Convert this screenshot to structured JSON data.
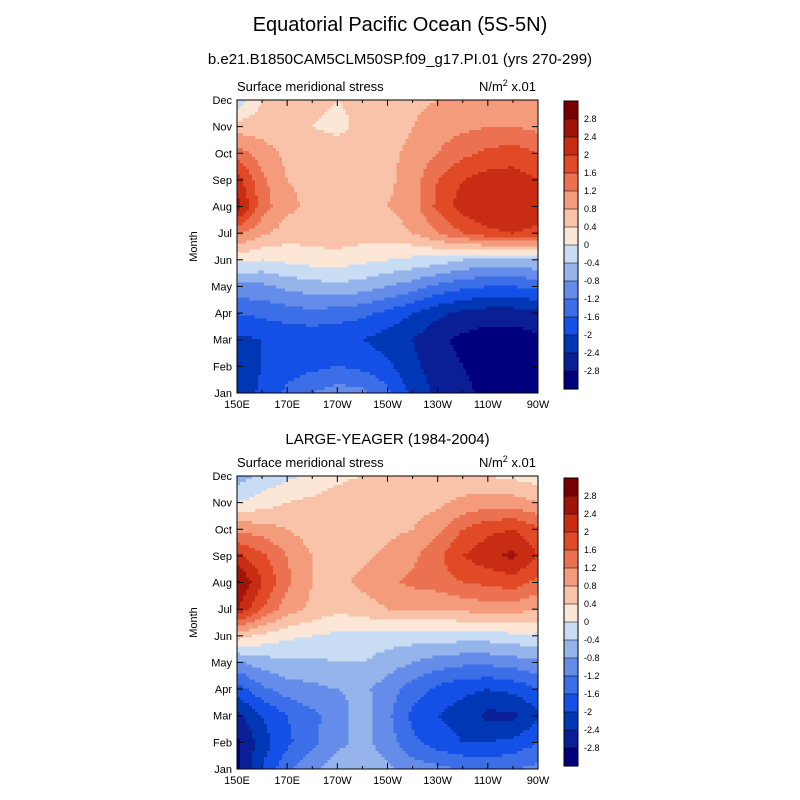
{
  "figure": {
    "title": "Equatorial Pacific Ocean (5S-5N)",
    "subtitle": "b.e21.B1850CAM5CLM50SP.f09_g17.PI.01 (yrs 270-299)"
  },
  "chart_data": [
    {
      "type": "heatmap",
      "title": "",
      "left_label": "Surface meridional stress",
      "right_label_base": "N/m",
      "right_label_sup": "2",
      "right_label_suffix": " x.01",
      "ylabel": "Month",
      "xlabel": "",
      "x_ticks": [
        "150E",
        "170E",
        "170W",
        "150W",
        "130W",
        "110W",
        "90W"
      ],
      "y_ticks": [
        "Jan",
        "Feb",
        "Mar",
        "Apr",
        "May",
        "Jun",
        "Jul",
        "Aug",
        "Sep",
        "Oct",
        "Nov",
        "Dec"
      ],
      "xlim": [
        150,
        270
      ],
      "levels": [
        -2.8,
        -2.4,
        -2,
        -1.6,
        -1.2,
        -0.8,
        -0.4,
        0,
        0.4,
        0.8,
        1.2,
        1.6,
        2,
        2.4,
        2.8
      ],
      "colorbar_labels": [
        "2.8",
        "2.4",
        "2",
        "1.6",
        "1.2",
        "0.8",
        "0.4",
        "0",
        "-0.4",
        "-0.8",
        "-1.2",
        "-1.6",
        "-2",
        "-2.4",
        "-2.8"
      ],
      "x": [
        150,
        160,
        170,
        180,
        190,
        200,
        210,
        220,
        230,
        240,
        250,
        260,
        270
      ],
      "z": [
        [
          -2.3,
          -1.9,
          -1.5,
          -1.2,
          -1.0,
          -1.1,
          -1.5,
          -2.1,
          -2.5,
          -2.7,
          -2.9,
          -2.9,
          -2.8
        ],
        [
          -2.3,
          -2.0,
          -1.8,
          -1.7,
          -1.6,
          -1.7,
          -1.9,
          -2.3,
          -2.6,
          -2.8,
          -3.0,
          -3.0,
          -2.9
        ],
        [
          -2.1,
          -2.0,
          -1.9,
          -1.9,
          -1.9,
          -2.0,
          -2.2,
          -2.4,
          -2.7,
          -2.9,
          -3.0,
          -3.0,
          -2.9
        ],
        [
          -1.6,
          -1.5,
          -1.4,
          -1.3,
          -1.4,
          -1.5,
          -1.7,
          -2.0,
          -2.3,
          -2.5,
          -2.6,
          -2.6,
          -2.5
        ],
        [
          -0.9,
          -0.9,
          -0.7,
          -0.6,
          -0.5,
          -0.6,
          -0.8,
          -1.0,
          -1.3,
          -1.5,
          -1.6,
          -1.6,
          -1.5
        ],
        [
          0.1,
          0.0,
          0.1,
          0.2,
          0.2,
          0.1,
          0.0,
          -0.1,
          -0.2,
          -0.4,
          -0.5,
          -0.5,
          -0.4
        ],
        [
          1.3,
          0.9,
          0.6,
          0.6,
          0.7,
          0.6,
          0.6,
          0.8,
          1.2,
          1.6,
          1.9,
          2.0,
          1.9
        ],
        [
          2.6,
          1.4,
          0.9,
          0.7,
          0.7,
          0.7,
          0.8,
          1.0,
          1.7,
          2.2,
          2.4,
          2.4,
          2.2
        ],
        [
          2.2,
          1.3,
          0.8,
          0.7,
          0.6,
          0.6,
          0.7,
          1.0,
          1.6,
          2.0,
          2.2,
          2.2,
          2.0
        ],
        [
          1.4,
          1.0,
          0.7,
          0.6,
          0.6,
          0.6,
          0.7,
          0.9,
          1.2,
          1.5,
          1.7,
          1.8,
          1.6
        ],
        [
          0.6,
          0.6,
          0.5,
          0.4,
          0.3,
          0.5,
          0.6,
          0.8,
          1.0,
          1.1,
          1.2,
          1.2,
          1.1
        ],
        [
          -0.3,
          0.4,
          0.5,
          0.5,
          0.4,
          0.5,
          0.6,
          0.7,
          0.8,
          0.9,
          0.9,
          0.9,
          0.8
        ]
      ]
    },
    {
      "type": "heatmap",
      "title": "LARGE-YEAGER (1984-2004)",
      "left_label": "Surface meridional stress",
      "right_label_base": "N/m",
      "right_label_sup": "2",
      "right_label_suffix": " x.01",
      "ylabel": "Month",
      "xlabel": "",
      "x_ticks": [
        "150E",
        "170E",
        "170W",
        "150W",
        "130W",
        "110W",
        "90W"
      ],
      "y_ticks": [
        "Jan",
        "Feb",
        "Mar",
        "Apr",
        "May",
        "Jun",
        "Jul",
        "Aug",
        "Sep",
        "Oct",
        "Nov",
        "Dec"
      ],
      "xlim": [
        150,
        270
      ],
      "levels": [
        -2.8,
        -2.4,
        -2,
        -1.6,
        -1.2,
        -0.8,
        -0.4,
        0,
        0.4,
        0.8,
        1.2,
        1.6,
        2,
        2.4,
        2.8
      ],
      "colorbar_labels": [
        "2.8",
        "2.4",
        "2",
        "1.6",
        "1.2",
        "0.8",
        "0.4",
        "0",
        "-0.4",
        "-0.8",
        "-1.2",
        "-1.6",
        "-2",
        "-2.4",
        "-2.8"
      ],
      "x": [
        150,
        160,
        170,
        180,
        190,
        200,
        210,
        220,
        230,
        240,
        250,
        260,
        270
      ],
      "z": [
        [
          -2.9,
          -2.0,
          -1.3,
          -0.9,
          -0.6,
          -0.5,
          -0.7,
          -1.0,
          -1.1,
          -1.2,
          -1.3,
          -1.2,
          -1.1
        ],
        [
          -2.9,
          -2.2,
          -1.7,
          -1.3,
          -0.9,
          -0.7,
          -1.0,
          -1.5,
          -1.8,
          -2.0,
          -2.0,
          -1.9,
          -1.6
        ],
        [
          -2.5,
          -2.0,
          -1.6,
          -1.3,
          -1.0,
          -0.6,
          -1.1,
          -1.7,
          -2.0,
          -2.2,
          -2.5,
          -2.5,
          -2.1
        ],
        [
          -1.8,
          -1.3,
          -1.0,
          -0.9,
          -0.8,
          -0.7,
          -1.0,
          -1.4,
          -1.7,
          -1.9,
          -2.0,
          -1.9,
          -1.6
        ],
        [
          -0.9,
          -0.6,
          -0.5,
          -0.5,
          -0.4,
          -0.4,
          -0.6,
          -0.8,
          -1.0,
          -1.1,
          -1.1,
          -1.0,
          -0.9
        ],
        [
          0.6,
          0.3,
          0.1,
          0.0,
          -0.1,
          -0.1,
          -0.2,
          -0.2,
          -0.2,
          -0.2,
          -0.2,
          -0.1,
          -0.1
        ],
        [
          2.4,
          1.6,
          1.0,
          0.7,
          0.5,
          0.6,
          0.8,
          0.8,
          0.8,
          0.9,
          1.0,
          1.0,
          0.8
        ],
        [
          2.9,
          2.0,
          1.3,
          0.8,
          0.7,
          0.9,
          1.1,
          1.3,
          1.4,
          1.6,
          1.7,
          1.8,
          1.5
        ],
        [
          2.1,
          1.7,
          1.2,
          0.8,
          0.6,
          0.7,
          0.9,
          1.1,
          1.5,
          2.0,
          2.3,
          2.5,
          2.0
        ],
        [
          1.1,
          1.0,
          0.8,
          0.6,
          0.5,
          0.6,
          0.7,
          0.8,
          1.1,
          1.6,
          1.9,
          2.0,
          1.7
        ],
        [
          0.0,
          0.2,
          0.4,
          0.5,
          0.6,
          0.7,
          0.7,
          0.6,
          0.7,
          0.9,
          1.0,
          1.0,
          0.8
        ],
        [
          -0.6,
          -0.3,
          -0.1,
          0.1,
          0.3,
          0.4,
          0.4,
          0.4,
          0.5,
          0.5,
          0.4,
          0.3,
          0.2
        ]
      ]
    }
  ],
  "colors": {
    "palette": [
      "#00007f",
      "#0a1e96",
      "#0037b4",
      "#1450e6",
      "#3c6ee8",
      "#648ce8",
      "#96b4ec",
      "#c8dcf4",
      "#fce6d6",
      "#f8c3a8",
      "#f49b7c",
      "#ec7150",
      "#e14a26",
      "#c82d14",
      "#a0140a",
      "#780000"
    ],
    "axis": "#000000"
  }
}
